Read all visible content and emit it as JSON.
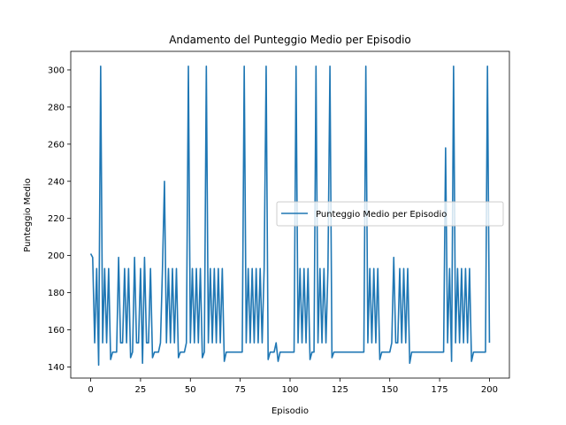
{
  "chart_data": {
    "type": "line",
    "title": "Andamento del Punteggio Medio per Episodio",
    "xlabel": "Episodio",
    "ylabel": "Punteggio Medio",
    "xlim": [
      -10,
      210
    ],
    "ylim": [
      134,
      310
    ],
    "xticks": [
      0,
      25,
      50,
      75,
      100,
      125,
      150,
      175,
      200
    ],
    "yticks": [
      140,
      160,
      180,
      200,
      220,
      240,
      260,
      280,
      300
    ],
    "grid": false,
    "legend": "center-right",
    "series": [
      {
        "name": "Punteggio Medio per Episodio",
        "color": "#1f77b4",
        "x": [
          0,
          1,
          2,
          3,
          4,
          5,
          6,
          7,
          8,
          9,
          10,
          11,
          12,
          13,
          14,
          15,
          16,
          17,
          18,
          19,
          20,
          21,
          22,
          23,
          24,
          25,
          26,
          27,
          28,
          29,
          30,
          31,
          32,
          33,
          34,
          35,
          36,
          37,
          38,
          39,
          40,
          41,
          42,
          43,
          44,
          45,
          46,
          47,
          48,
          49,
          50,
          51,
          52,
          53,
          54,
          55,
          56,
          57,
          58,
          59,
          60,
          61,
          62,
          63,
          64,
          65,
          66,
          67,
          68,
          69,
          70,
          71,
          72,
          73,
          74,
          75,
          76,
          77,
          78,
          79,
          80,
          81,
          82,
          83,
          84,
          85,
          86,
          87,
          88,
          89,
          90,
          91,
          92,
          93,
          94,
          95,
          96,
          97,
          98,
          99,
          100,
          101,
          102,
          103,
          104,
          105,
          106,
          107,
          108,
          109,
          110,
          111,
          112,
          113,
          114,
          115,
          116,
          117,
          118,
          119,
          120,
          121,
          122,
          123,
          124,
          125,
          126,
          127,
          128,
          129,
          130,
          131,
          132,
          133,
          134,
          135,
          136,
          137,
          138,
          139,
          140,
          141,
          142,
          143,
          144,
          145,
          146,
          147,
          148,
          149,
          150,
          151,
          152,
          153,
          154,
          155,
          156,
          157,
          158,
          159,
          160,
          161,
          162,
          163,
          164,
          165,
          166,
          167,
          168,
          169,
          170,
          171,
          172,
          173,
          174,
          175,
          176,
          177,
          178,
          179,
          180,
          181,
          182,
          183,
          184,
          185,
          186,
          187,
          188,
          189,
          190,
          191,
          192,
          193,
          194,
          195,
          196,
          197,
          198,
          199,
          200
        ],
        "values": [
          201,
          199,
          153,
          193,
          141,
          302,
          153,
          193,
          153,
          193,
          144,
          148,
          148,
          148,
          199,
          153,
          153,
          193,
          153,
          193,
          145,
          148,
          199,
          153,
          153,
          193,
          142,
          199,
          153,
          153,
          193,
          145,
          148,
          148,
          148,
          153,
          193,
          240,
          153,
          193,
          153,
          193,
          153,
          193,
          145,
          148,
          148,
          148,
          153,
          302,
          153,
          193,
          153,
          193,
          153,
          193,
          145,
          148,
          302,
          153,
          193,
          153,
          193,
          153,
          193,
          153,
          193,
          143,
          148,
          148,
          148,
          148,
          148,
          148,
          148,
          148,
          148,
          302,
          153,
          193,
          153,
          193,
          153,
          193,
          153,
          193,
          153,
          193,
          302,
          144,
          148,
          148,
          148,
          153,
          143,
          148,
          148,
          148,
          148,
          148,
          148,
          148,
          148,
          302,
          153,
          193,
          153,
          193,
          153,
          193,
          144,
          148,
          148,
          302,
          153,
          193,
          153,
          193,
          153,
          193,
          302,
          145,
          148,
          148,
          148,
          148,
          148,
          148,
          148,
          148,
          148,
          148,
          148,
          148,
          148,
          148,
          148,
          148,
          302,
          153,
          193,
          153,
          193,
          153,
          193,
          144,
          148,
          148,
          148,
          148,
          148,
          153,
          199,
          153,
          153,
          193,
          153,
          193,
          153,
          193,
          142,
          148,
          148,
          148,
          148,
          148,
          148,
          148,
          148,
          148,
          148,
          148,
          148,
          148,
          148,
          148,
          148,
          148,
          258,
          153,
          193,
          143,
          302,
          153,
          193,
          153,
          193,
          153,
          193,
          153,
          193,
          143,
          148,
          148,
          148,
          148,
          148,
          148,
          148,
          302,
          153
        ]
      }
    ]
  }
}
